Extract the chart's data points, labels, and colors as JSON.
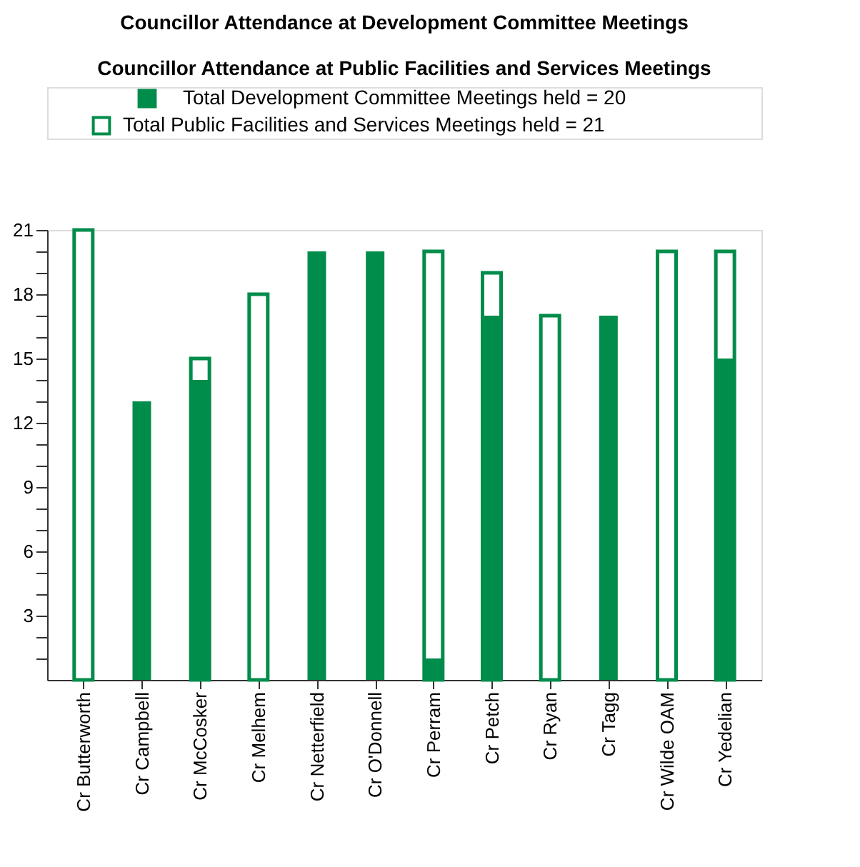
{
  "chart_data": {
    "type": "bar",
    "title": "Councillor Attendance at Development Committee Meetings",
    "subtitle": "Councillor Attendance at Public Facilities and Services Meetings",
    "categories": [
      "Cr Butterworth",
      "Cr Campbell",
      "Cr McCosker",
      "Cr Melhem",
      "Cr Netterfield",
      "Cr O'Donnell",
      "Cr Perram",
      "Cr Petch",
      "Cr Ryan",
      "Cr Tagg",
      "Cr Wilde OAM",
      "Cr Yedelian"
    ],
    "series": [
      {
        "name": "Total Development Committee Meetings held = 20",
        "color": "#008c4a",
        "values": [
          0,
          13,
          14,
          0,
          20,
          20,
          1,
          17,
          0,
          17,
          0,
          15
        ]
      },
      {
        "name": "Total Public Facilities and Services Meetings held = 21",
        "color": "#008c4a",
        "values": [
          21,
          null,
          15,
          18,
          null,
          null,
          20,
          19,
          17,
          null,
          20,
          20
        ]
      }
    ],
    "ylim": [
      0,
      21
    ],
    "yticks": [
      {
        "value": 1,
        "label": null
      },
      {
        "value": 2,
        "label": null
      },
      3,
      {
        "value": 4,
        "label": null
      },
      {
        "value": 5,
        "label": null
      },
      6,
      {
        "value": 7,
        "label": null
      },
      {
        "value": 8,
        "label": null
      },
      9,
      {
        "value": 10,
        "label": null
      },
      {
        "value": 11,
        "label": null
      },
      12,
      {
        "value": 13,
        "label": null
      },
      {
        "value": 14,
        "label": null
      },
      15,
      {
        "value": 16,
        "label": null
      },
      {
        "value": 17,
        "label": null
      },
      18,
      {
        "value": 19,
        "label": null
      },
      {
        "value": 20,
        "label": null
      },
      21
    ],
    "grid": false,
    "legend": "top"
  }
}
